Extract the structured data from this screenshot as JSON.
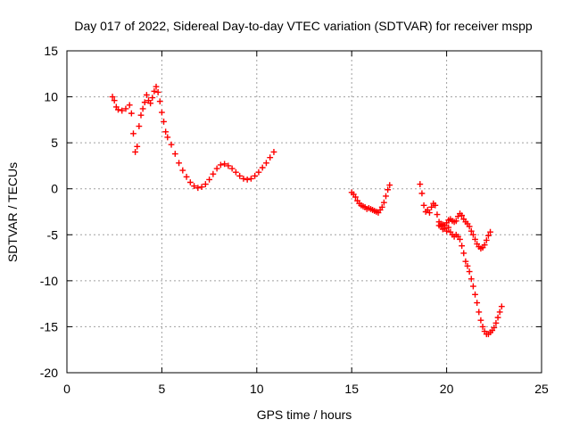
{
  "chart_data": {
    "type": "scatter",
    "title": "Day 017 of 2022, Sidereal Day-to-day VTEC variation (SDTVAR) for receiver mspp",
    "xlabel": "GPS time / hours",
    "ylabel": "SDTVAR / TECUs",
    "xlim": [
      0,
      25
    ],
    "ylim": [
      -20,
      15
    ],
    "xticks": [
      "0",
      "5",
      "10",
      "15",
      "20",
      "25"
    ],
    "yticks": [
      "15",
      "10",
      "5",
      "0",
      "-5",
      "-10",
      "-15",
      "-20"
    ],
    "grid": true,
    "marker": "plus",
    "colors": {
      "series": "#ff0000"
    },
    "series": [
      {
        "values": [
          [
            2.4,
            10.0
          ],
          [
            2.5,
            9.6
          ],
          [
            2.6,
            8.9
          ],
          [
            2.7,
            8.6
          ],
          [
            2.9,
            8.5
          ],
          [
            3.1,
            8.7
          ],
          [
            3.3,
            9.1
          ],
          [
            3.4,
            8.2
          ],
          [
            3.5,
            6.0
          ],
          [
            3.6,
            4.0
          ],
          [
            3.7,
            4.6
          ],
          [
            3.8,
            6.8
          ],
          [
            3.9,
            8.0
          ],
          [
            4.0,
            8.7
          ],
          [
            4.1,
            9.4
          ],
          [
            4.2,
            10.2
          ],
          [
            4.3,
            9.6
          ],
          [
            4.4,
            9.3
          ],
          [
            4.5,
            9.9
          ],
          [
            4.6,
            10.6
          ],
          [
            4.7,
            11.1
          ],
          [
            4.8,
            10.5
          ],
          [
            4.9,
            9.5
          ],
          [
            5.0,
            8.3
          ],
          [
            5.1,
            7.3
          ],
          [
            5.2,
            6.2
          ],
          [
            5.3,
            5.6
          ],
          [
            5.5,
            4.8
          ],
          [
            5.7,
            3.8
          ],
          [
            5.9,
            2.8
          ],
          [
            6.1,
            2.0
          ],
          [
            6.3,
            1.3
          ],
          [
            6.5,
            0.7
          ],
          [
            6.7,
            0.3
          ],
          [
            6.9,
            0.1
          ],
          [
            7.1,
            0.2
          ],
          [
            7.3,
            0.5
          ],
          [
            7.5,
            1.0
          ],
          [
            7.7,
            1.6
          ],
          [
            7.9,
            2.2
          ],
          [
            8.1,
            2.6
          ],
          [
            8.3,
            2.7
          ],
          [
            8.5,
            2.5
          ],
          [
            8.7,
            2.2
          ],
          [
            8.9,
            1.8
          ],
          [
            9.1,
            1.4
          ],
          [
            9.3,
            1.1
          ],
          [
            9.5,
            1.0
          ],
          [
            9.7,
            1.1
          ],
          [
            9.9,
            1.4
          ],
          [
            10.1,
            1.8
          ],
          [
            10.3,
            2.3
          ],
          [
            10.5,
            2.8
          ],
          [
            10.7,
            3.4
          ],
          [
            10.9,
            4.0
          ]
        ]
      },
      {
        "values": [
          [
            15.0,
            -0.4
          ],
          [
            15.1,
            -0.6
          ],
          [
            15.2,
            -0.9
          ],
          [
            15.3,
            -1.3
          ],
          [
            15.4,
            -1.6
          ],
          [
            15.5,
            -1.8
          ],
          [
            15.6,
            -1.9
          ],
          [
            15.7,
            -2.0
          ],
          [
            15.8,
            -2.2
          ],
          [
            15.9,
            -2.1
          ],
          [
            16.0,
            -2.2
          ],
          [
            16.1,
            -2.3
          ],
          [
            16.2,
            -2.4
          ],
          [
            16.3,
            -2.5
          ],
          [
            16.4,
            -2.6
          ],
          [
            16.5,
            -2.3
          ],
          [
            16.6,
            -2.0
          ],
          [
            16.7,
            -1.5
          ],
          [
            16.8,
            -0.8
          ],
          [
            16.9,
            -0.1
          ],
          [
            17.0,
            0.4
          ]
        ]
      },
      {
        "values": [
          [
            18.6,
            0.5
          ],
          [
            18.7,
            -0.5
          ],
          [
            18.8,
            -1.8
          ],
          [
            18.9,
            -2.5
          ],
          [
            19.0,
            -2.3
          ],
          [
            19.1,
            -2.6
          ],
          [
            19.2,
            -2.0
          ],
          [
            19.3,
            -1.6
          ],
          [
            19.4,
            -1.8
          ],
          [
            19.5,
            -2.8
          ],
          [
            19.6,
            -3.6
          ],
          [
            19.7,
            -4.1
          ],
          [
            19.8,
            -4.4
          ],
          [
            19.9,
            -4.3
          ],
          [
            20.0,
            -4.6
          ],
          [
            20.1,
            -4.2
          ],
          [
            20.2,
            -4.7
          ],
          [
            20.3,
            -5.0
          ],
          [
            20.4,
            -5.2
          ],
          [
            20.5,
            -5.0
          ],
          [
            20.6,
            -5.2
          ],
          [
            20.7,
            -5.5
          ],
          [
            20.8,
            -6.2
          ],
          [
            20.9,
            -7.0
          ],
          [
            21.0,
            -7.9
          ],
          [
            21.1,
            -8.4
          ],
          [
            21.2,
            -9.0
          ],
          [
            21.3,
            -9.8
          ],
          [
            21.4,
            -10.6
          ],
          [
            21.5,
            -11.5
          ],
          [
            21.6,
            -12.4
          ],
          [
            21.7,
            -13.4
          ],
          [
            21.8,
            -14.3
          ],
          [
            21.9,
            -15.0
          ],
          [
            22.0,
            -15.5
          ],
          [
            22.1,
            -15.8
          ],
          [
            22.2,
            -15.8
          ],
          [
            22.3,
            -15.6
          ],
          [
            22.4,
            -15.4
          ],
          [
            22.5,
            -15.1
          ],
          [
            22.6,
            -14.6
          ],
          [
            22.7,
            -14.0
          ],
          [
            22.8,
            -13.4
          ],
          [
            22.9,
            -12.8
          ]
        ]
      },
      {
        "values": [
          [
            19.6,
            -4.0
          ],
          [
            19.7,
            -3.8
          ],
          [
            19.8,
            -3.9
          ],
          [
            19.9,
            -4.0
          ],
          [
            20.0,
            -3.7
          ],
          [
            20.1,
            -3.4
          ],
          [
            20.2,
            -3.3
          ],
          [
            20.3,
            -3.5
          ],
          [
            20.4,
            -3.6
          ],
          [
            20.5,
            -3.5
          ],
          [
            20.6,
            -3.0
          ],
          [
            20.7,
            -2.7
          ],
          [
            20.8,
            -2.9
          ],
          [
            20.9,
            -3.3
          ],
          [
            21.0,
            -3.6
          ],
          [
            21.1,
            -3.8
          ],
          [
            21.2,
            -4.1
          ],
          [
            21.3,
            -4.6
          ],
          [
            21.4,
            -5.0
          ],
          [
            21.5,
            -5.5
          ],
          [
            21.6,
            -6.0
          ],
          [
            21.7,
            -6.3
          ],
          [
            21.8,
            -6.5
          ],
          [
            21.9,
            -6.4
          ],
          [
            22.0,
            -6.1
          ],
          [
            22.1,
            -5.6
          ],
          [
            22.2,
            -5.1
          ],
          [
            22.3,
            -4.7
          ]
        ]
      }
    ]
  }
}
